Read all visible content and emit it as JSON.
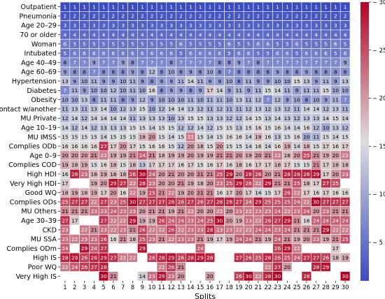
{
  "chart_data": {
    "type": "heatmap",
    "title": "",
    "xlabel": "Splits",
    "ylabel": "",
    "x": [
      1,
      2,
      3,
      4,
      5,
      6,
      7,
      8,
      9,
      10,
      11,
      12,
      13,
      14,
      15,
      16,
      17,
      18,
      19,
      20,
      21,
      22,
      23,
      24,
      25,
      26,
      27,
      28,
      29,
      30
    ],
    "rows": [
      "Outpatient",
      "Pneumonia",
      "Age 20–29",
      "70 or older",
      "Woman",
      "Intubated",
      "Age 40–49",
      "Age 60–69",
      "Hypertension",
      "Diabetes",
      "Obesity",
      "Contact w/another",
      "MU Private",
      "Age 10–19",
      "MU IMSS",
      "Complies ODb",
      "Age 0–9",
      "Complies COD",
      "High HDI",
      "Very High HDI",
      "Good WQ",
      "Complies ODs",
      "MU Others",
      "Age 30–39",
      "CKD",
      "MU SSA",
      "Complies ODm",
      "High IS",
      "Poor WQ",
      "Very High IS"
    ],
    "values": [
      [
        1,
        1,
        1,
        1,
        1,
        1,
        1,
        1,
        1,
        1,
        1,
        1,
        1,
        1,
        1,
        1,
        1,
        1,
        1,
        1,
        1,
        1,
        1,
        1,
        1,
        1,
        1,
        1,
        1,
        1
      ],
      [
        2,
        2,
        2,
        2,
        2,
        2,
        2,
        2,
        2,
        2,
        2,
        2,
        2,
        2,
        2,
        2,
        2,
        2,
        2,
        2,
        2,
        2,
        2,
        2,
        2,
        2,
        2,
        2,
        2,
        2
      ],
      [
        3,
        3,
        3,
        3,
        3,
        3,
        3,
        3,
        3,
        3,
        3,
        3,
        3,
        3,
        3,
        3,
        3,
        3,
        3,
        3,
        3,
        3,
        3,
        3,
        3,
        3,
        3,
        3,
        3,
        3
      ],
      [
        4,
        4,
        4,
        4,
        4,
        4,
        4,
        4,
        4,
        4,
        4,
        4,
        4,
        4,
        4,
        4,
        4,
        4,
        4,
        4,
        4,
        4,
        4,
        4,
        4,
        4,
        4,
        4,
        4,
        4
      ],
      [
        6,
        5,
        5,
        5,
        5,
        5,
        5,
        5,
        5,
        5,
        5,
        5,
        6,
        5,
        5,
        5,
        5,
        6,
        5,
        5,
        6,
        6,
        5,
        5,
        6,
        5,
        5,
        5,
        6,
        5
      ],
      [
        5,
        6,
        6,
        6,
        6,
        6,
        6,
        6,
        6,
        6,
        6,
        6,
        5,
        6,
        6,
        6,
        6,
        5,
        6,
        6,
        5,
        5,
        6,
        6,
        5,
        6,
        6,
        6,
        5,
        6
      ],
      [
        8,
        7,
        7,
        9,
        7,
        7,
        9,
        8,
        7,
        7,
        7,
        8,
        7,
        7,
        7,
        7,
        8,
        8,
        9,
        7,
        8,
        7,
        7,
        7,
        7,
        7,
        7,
        7,
        7,
        9
      ],
      [
        9,
        8,
        8,
        7,
        8,
        8,
        8,
        9,
        8,
        12,
        8,
        10,
        8,
        9,
        8,
        10,
        8,
        7,
        8,
        8,
        8,
        8,
        9,
        8,
        8,
        9,
        8,
        8,
        8,
        8
      ],
      [
        13,
        9,
        10,
        11,
        9,
        9,
        10,
        11,
        9,
        8,
        9,
        9,
        11,
        14,
        11,
        9,
        9,
        10,
        8,
        11,
        9,
        9,
        10,
        10,
        15,
        13,
        9,
        11,
        9,
        13
      ],
      [
        7,
        11,
        9,
        10,
        10,
        12,
        10,
        11,
        10,
        16,
        8,
        9,
        9,
        8,
        9,
        17,
        14,
        9,
        11,
        9,
        11,
        15,
        14,
        11,
        9,
        11,
        11,
        15,
        10,
        10
      ],
      [
        10,
        10,
        13,
        8,
        11,
        11,
        8,
        9,
        12,
        9,
        10,
        10,
        10,
        11,
        10,
        11,
        11,
        10,
        13,
        11,
        12,
        7,
        12,
        9,
        10,
        8,
        10,
        9,
        11,
        7
      ],
      [
        11,
        13,
        11,
        13,
        14,
        10,
        12,
        13,
        15,
        10,
        12,
        14,
        14,
        13,
        12,
        11,
        12,
        11,
        11,
        12,
        13,
        12,
        13,
        12,
        11,
        14,
        14,
        12,
        13,
        11
      ],
      [
        12,
        14,
        12,
        14,
        14,
        14,
        14,
        11,
        13,
        13,
        13,
        10,
        13,
        15,
        15,
        13,
        13,
        12,
        12,
        14,
        15,
        13,
        14,
        13,
        12,
        13,
        13,
        14,
        15,
        14
      ],
      [
        14,
        12,
        14,
        12,
        13,
        13,
        13,
        15,
        15,
        14,
        15,
        15,
        12,
        12,
        14,
        12,
        15,
        15,
        13,
        15,
        16,
        15,
        16,
        14,
        14,
        16,
        12,
        10,
        13,
        12
      ],
      [
        15,
        15,
        15,
        15,
        14,
        15,
        15,
        15,
        18,
        20,
        15,
        14,
        15,
        22,
        15,
        14,
        15,
        16,
        16,
        14,
        18,
        16,
        13,
        15,
        16,
        10,
        11,
        15,
        14,
        15
      ],
      [
        16,
        16,
        16,
        16,
        27,
        17,
        20,
        17,
        15,
        16,
        16,
        15,
        12,
        20,
        18,
        15,
        20,
        15,
        15,
        14,
        16,
        14,
        16,
        19,
        14,
        18,
        15,
        17,
        16,
        17
      ],
      [
        20,
        20,
        20,
        21,
        22,
        19,
        19,
        21,
        24,
        21,
        18,
        19,
        19,
        20,
        19,
        19,
        21,
        21,
        20,
        19,
        20,
        21,
        22,
        18,
        20,
        25,
        21,
        19,
        20,
        22
      ],
      [
        19,
        18,
        19,
        15,
        16,
        18,
        15,
        18,
        13,
        17,
        17,
        17,
        16,
        17,
        15,
        16,
        17,
        16,
        18,
        16,
        17,
        17,
        18,
        17,
        15,
        15,
        21,
        17,
        18,
        18
      ],
      [
        16,
        28,
        23,
        18,
        19,
        18,
        18,
        26,
        30,
        24,
        20,
        21,
        20,
        20,
        21,
        21,
        25,
        29,
        20,
        28,
        26,
        20,
        21,
        28,
        28,
        28,
        29,
        17,
        20,
        23
      ],
      [
        17,
        0,
        0,
        19,
        20,
        29,
        27,
        22,
        28,
        23,
        20,
        20,
        21,
        19,
        18,
        20,
        23,
        25,
        29,
        26,
        22,
        29,
        21,
        21,
        25,
        18,
        17,
        27,
        25,
        0
      ],
      [
        18,
        19,
        18,
        19,
        17,
        20,
        16,
        22,
        19,
        25,
        21,
        22,
        19,
        20,
        21,
        21,
        16,
        17,
        20,
        17,
        14,
        15,
        17,
        26,
        22,
        17,
        16,
        17,
        16,
        16
      ],
      [
        25,
        27,
        27,
        22,
        27,
        23,
        25,
        30,
        27,
        27,
        27,
        28,
        26,
        27,
        26,
        27,
        28,
        28,
        27,
        24,
        29,
        25,
        25,
        25,
        24,
        22,
        30,
        27,
        27,
        27
      ],
      [
        21,
        21,
        21,
        23,
        23,
        24,
        23,
        23,
        20,
        21,
        21,
        19,
        21,
        22,
        20,
        20,
        22,
        20,
        23,
        22,
        23,
        23,
        24,
        22,
        23,
        24,
        20,
        23,
        21,
        21
      ],
      [
        27,
        17,
        0,
        0,
        27,
        22,
        22,
        29,
        19,
        19,
        26,
        24,
        24,
        23,
        24,
        25,
        30,
        20,
        19,
        23,
        22,
        26,
        27,
        29,
        21,
        16,
        24,
        24,
        24,
        24
      ],
      [
        23,
        0,
        22,
        21,
        23,
        22,
        23,
        21,
        26,
        22,
        22,
        26,
        22,
        23,
        23,
        28,
        23,
        23,
        22,
        22,
        24,
        24,
        23,
        24,
        21,
        21,
        21,
        29,
        22,
        22
      ],
      [
        23,
        22,
        23,
        23,
        26,
        16,
        21,
        18,
        25,
        23,
        21,
        22,
        23,
        23,
        21,
        19,
        17,
        19,
        24,
        24,
        21,
        19,
        24,
        21,
        19,
        20,
        23,
        19,
        21,
        25
      ],
      [
        24,
        0,
        29,
        24,
        27,
        0,
        0,
        0,
        29,
        0,
        0,
        0,
        0,
        0,
        24,
        0,
        0,
        0,
        0,
        0,
        0,
        0,
        26,
        29,
        22,
        0,
        0,
        0,
        17,
        0
      ],
      [
        28,
        29,
        26,
        28,
        29,
        27,
        22,
        22,
        0,
        26,
        28,
        29,
        26,
        28,
        29,
        28,
        0,
        0,
        27,
        26,
        25,
        28,
        26,
        25,
        24,
        27,
        27,
        26,
        18,
        19
      ],
      [
        22,
        24,
        26,
        27,
        28,
        0,
        0,
        0,
        0,
        0,
        22,
        26,
        21,
        0,
        0,
        0,
        0,
        0,
        0,
        0,
        0,
        22,
        27,
        20,
        0,
        0,
        28,
        29,
        0,
        0
      ],
      [
        0,
        0,
        0,
        0,
        30,
        21,
        0,
        0,
        14,
        23,
        29,
        23,
        20,
        0,
        0,
        20,
        0,
        0,
        26,
        30,
        22,
        28,
        30,
        0,
        0,
        28,
        0,
        0,
        0,
        30
      ]
    ],
    "colorbar": {
      "min": 1,
      "max": 30,
      "ticks": [
        5,
        10,
        15,
        20,
        25,
        30
      ]
    },
    "colormap": [
      "#3b4cc0",
      "#dddddd",
      "#b40426"
    ],
    "missing_color": "#ffffff"
  }
}
